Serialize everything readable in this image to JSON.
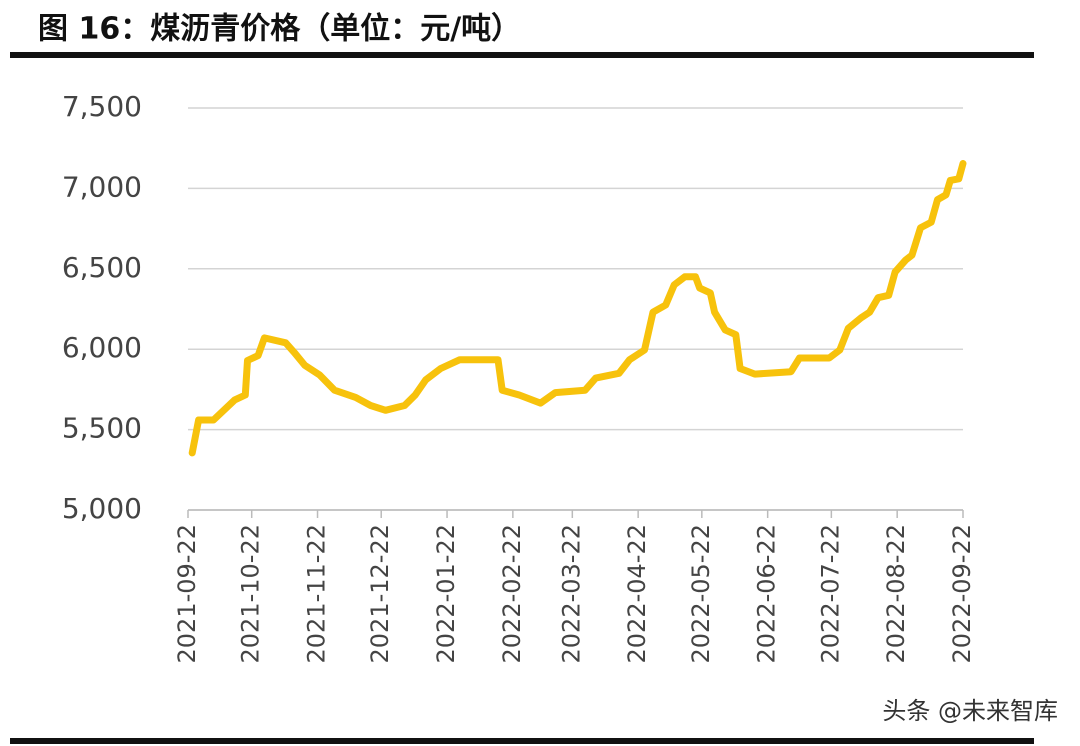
{
  "chart_data": {
    "type": "line",
    "title": "图 16：煤沥青价格（单位：元/吨）",
    "watermark": "头条 @未来智库",
    "x": [
      "2021-09-24",
      "2021-09-27",
      "2021-10-04",
      "2021-10-14",
      "2021-10-19",
      "2021-10-20",
      "2021-10-25",
      "2021-10-28",
      "2021-11-07",
      "2021-11-11",
      "2021-11-16",
      "2021-11-23",
      "2021-11-30",
      "2021-12-10",
      "2021-12-17",
      "2021-12-24",
      "2022-01-02",
      "2022-01-07",
      "2022-01-12",
      "2022-01-19",
      "2022-01-28",
      "2022-02-15",
      "2022-02-17",
      "2022-02-25",
      "2022-03-07",
      "2022-03-14",
      "2022-03-28",
      "2022-04-02",
      "2022-04-13",
      "2022-04-18",
      "2022-04-25",
      "2022-04-29",
      "2022-05-05",
      "2022-05-09",
      "2022-05-14",
      "2022-05-19",
      "2022-05-21",
      "2022-05-26",
      "2022-05-28",
      "2022-06-02",
      "2022-06-07",
      "2022-06-09",
      "2022-06-16",
      "2022-07-03",
      "2022-07-07",
      "2022-07-21",
      "2022-07-26",
      "2022-07-30",
      "2022-08-05",
      "2022-08-09",
      "2022-08-13",
      "2022-08-18",
      "2022-08-21",
      "2022-08-26",
      "2022-08-29",
      "2022-09-02",
      "2022-09-07",
      "2022-09-10",
      "2022-09-14",
      "2022-09-16",
      "2022-09-20",
      "2022-09-22"
    ],
    "series": [
      {
        "name": "煤沥青价格",
        "color": "#f7c20c",
        "values": [
          5355,
          5560,
          5560,
          5685,
          5715,
          5930,
          5960,
          6070,
          6040,
          5980,
          5900,
          5840,
          5745,
          5700,
          5650,
          5620,
          5650,
          5715,
          5810,
          5880,
          5935,
          5935,
          5745,
          5715,
          5665,
          5730,
          5745,
          5820,
          5850,
          5935,
          5995,
          6230,
          6275,
          6400,
          6450,
          6450,
          6380,
          6350,
          6230,
          6120,
          6090,
          5880,
          5845,
          5860,
          5945,
          5945,
          5995,
          6130,
          6195,
          6230,
          6320,
          6335,
          6480,
          6555,
          6585,
          6755,
          6790,
          6930,
          6960,
          7050,
          7060,
          7155
        ]
      }
    ],
    "xlim": [
      "2021-09-22",
      "2022-09-22"
    ],
    "xticks": [
      "2021-09-22",
      "2021-10-22",
      "2021-11-22",
      "2021-12-22",
      "2022-01-22",
      "2022-02-22",
      "2022-03-22",
      "2022-04-22",
      "2022-05-22",
      "2022-06-22",
      "2022-07-22",
      "2022-08-22",
      "2022-09-22"
    ],
    "ylim": [
      5000,
      7500
    ],
    "yticks": [
      {
        "value": 5000,
        "label": "5,000"
      },
      {
        "value": 5500,
        "label": "5,500"
      },
      {
        "value": 6000,
        "label": "6,000"
      },
      {
        "value": 6500,
        "label": "6,500"
      },
      {
        "value": 7000,
        "label": "7,000"
      },
      {
        "value": 7500,
        "label": "7,500"
      }
    ],
    "grid": true
  }
}
